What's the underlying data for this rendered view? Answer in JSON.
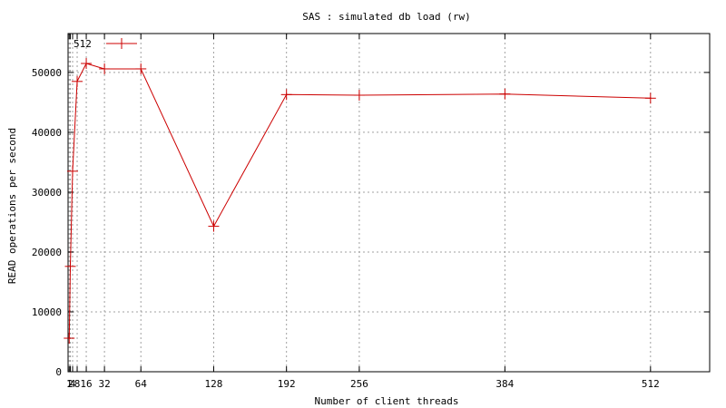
{
  "chart_data": {
    "type": "line",
    "title": "SAS : simulated db load (rw)",
    "xlabel": "Number of client threads",
    "ylabel": "READ operations per second",
    "xlim": [
      0,
      564
    ],
    "ylim": [
      0,
      56500
    ],
    "x_ticks": [
      1,
      2,
      4,
      8,
      16,
      32,
      64,
      128,
      192,
      256,
      384,
      512
    ],
    "x_tick_labels": [
      "1",
      "2",
      "4",
      "8",
      "16",
      "32",
      "64",
      "128",
      "192",
      "256",
      "384",
      "512"
    ],
    "y_ticks": [
      0,
      10000,
      20000,
      30000,
      40000,
      50000
    ],
    "y_tick_labels": [
      "0",
      "10000",
      "20000",
      "30000",
      "40000",
      "50000"
    ],
    "grid": true,
    "legend_position": "top-left",
    "series": [
      {
        "name": "512",
        "color": "#cc0000",
        "marker": "plus",
        "x": [
          1,
          2,
          4,
          8,
          16,
          32,
          64,
          128,
          192,
          256,
          384,
          512
        ],
        "y": [
          5600,
          17600,
          33500,
          48500,
          51500,
          50600,
          50600,
          24300,
          46300,
          46200,
          46400,
          45700
        ]
      }
    ]
  }
}
